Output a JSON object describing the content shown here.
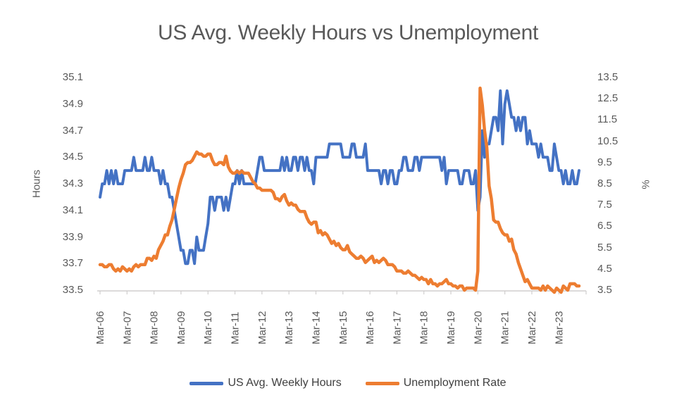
{
  "title": "US Avg. Weekly Hours vs Unemployment",
  "axes": {
    "left": {
      "title": "Hours",
      "ticks": [
        "35.1",
        "34.9",
        "34.7",
        "34.5",
        "34.3",
        "34.1",
        "33.9",
        "33.7",
        "33.5"
      ]
    },
    "right": {
      "title": "%",
      "ticks": [
        "13.5",
        "12.5",
        "11.5",
        "10.5",
        "9.5",
        "8.5",
        "7.5",
        "6.5",
        "5.5",
        "4.5",
        "3.5"
      ]
    },
    "x": {
      "ticks": [
        "Mar-06",
        "Mar-07",
        "Mar-08",
        "Mar-09",
        "Mar-10",
        "Mar-11",
        "Mar-12",
        "Mar-13",
        "Mar-14",
        "Mar-15",
        "Mar-16",
        "Mar-17",
        "Mar-18",
        "Mar-19",
        "Mar-20",
        "Mar-21",
        "Mar-22",
        "Mar-23"
      ]
    }
  },
  "legend": {
    "items": [
      {
        "label": "US Avg. Weekly Hours",
        "color": "#4472C4"
      },
      {
        "label": "Unemployment Rate",
        "color": "#ED7D31"
      }
    ]
  },
  "chart_data": {
    "type": "line",
    "title": "US Avg. Weekly Hours vs Unemployment",
    "x": {
      "start": "Mar-2006",
      "end": "Dec-2023",
      "frequency": "monthly",
      "points": 214,
      "tick_labels": [
        "Mar-06",
        "Mar-07",
        "Mar-08",
        "Mar-09",
        "Mar-10",
        "Mar-11",
        "Mar-12",
        "Mar-13",
        "Mar-14",
        "Mar-15",
        "Mar-16",
        "Mar-17",
        "Mar-18",
        "Mar-19",
        "Mar-20",
        "Mar-21",
        "Mar-22",
        "Mar-23"
      ]
    },
    "y_left": {
      "label": "Hours",
      "min": 33.5,
      "max": 35.1,
      "tick_step": 0.2
    },
    "y_right": {
      "label": "%",
      "min": 3.5,
      "max": 13.5,
      "tick_step": 1.0
    },
    "gridlines": false,
    "legend_position": "bottom",
    "series": [
      {
        "name": "US Avg. Weekly Hours",
        "axis": "left",
        "color": "#4472C4",
        "values": [
          34.2,
          34.3,
          34.3,
          34.4,
          34.3,
          34.4,
          34.3,
          34.4,
          34.3,
          34.3,
          34.3,
          34.4,
          34.4,
          34.4,
          34.4,
          34.5,
          34.4,
          34.4,
          34.4,
          34.4,
          34.5,
          34.4,
          34.4,
          34.5,
          34.4,
          34.4,
          34.4,
          34.3,
          34.4,
          34.3,
          34.3,
          34.2,
          34.2,
          34.1,
          34.0,
          33.9,
          33.8,
          33.8,
          33.7,
          33.7,
          33.8,
          33.8,
          33.7,
          33.9,
          33.8,
          33.8,
          33.8,
          33.9,
          34.0,
          34.2,
          34.2,
          34.1,
          34.2,
          34.2,
          34.2,
          34.1,
          34.2,
          34.1,
          34.2,
          34.3,
          34.3,
          34.4,
          34.3,
          34.4,
          34.3,
          34.3,
          34.3,
          34.3,
          34.3,
          34.3,
          34.4,
          34.5,
          34.5,
          34.4,
          34.4,
          34.4,
          34.4,
          34.4,
          34.4,
          34.4,
          34.4,
          34.5,
          34.4,
          34.5,
          34.4,
          34.4,
          34.5,
          34.5,
          34.4,
          34.5,
          34.5,
          34.4,
          34.5,
          34.4,
          34.4,
          34.3,
          34.5,
          34.5,
          34.5,
          34.5,
          34.5,
          34.5,
          34.6,
          34.6,
          34.6,
          34.6,
          34.6,
          34.6,
          34.5,
          34.5,
          34.5,
          34.5,
          34.6,
          34.6,
          34.5,
          34.5,
          34.5,
          34.5,
          34.6,
          34.4,
          34.4,
          34.4,
          34.4,
          34.4,
          34.4,
          34.3,
          34.4,
          34.4,
          34.3,
          34.4,
          34.4,
          34.3,
          34.3,
          34.4,
          34.4,
          34.5,
          34.5,
          34.4,
          34.4,
          34.4,
          34.5,
          34.5,
          34.4,
          34.5,
          34.5,
          34.5,
          34.5,
          34.5,
          34.5,
          34.5,
          34.5,
          34.5,
          34.4,
          34.5,
          34.3,
          34.4,
          34.4,
          34.4,
          34.4,
          34.4,
          34.3,
          34.3,
          34.4,
          34.4,
          34.4,
          34.3,
          34.3,
          34.4,
          34.1,
          34.2,
          34.7,
          34.5,
          34.6,
          34.6,
          34.7,
          34.8,
          34.8,
          34.7,
          35.0,
          34.6,
          34.9,
          35.0,
          34.9,
          34.8,
          34.8,
          34.7,
          34.8,
          34.7,
          34.8,
          34.8,
          34.6,
          34.7,
          34.6,
          34.6,
          34.6,
          34.5,
          34.6,
          34.5,
          34.5,
          34.5,
          34.4,
          34.4,
          34.6,
          34.5,
          34.4,
          34.4,
          34.3,
          34.4,
          34.3,
          34.3,
          34.4,
          34.3,
          34.3,
          34.4
        ]
      },
      {
        "name": "Unemployment Rate",
        "axis": "right",
        "color": "#ED7D31",
        "values": [
          4.7,
          4.7,
          4.6,
          4.6,
          4.7,
          4.7,
          4.5,
          4.4,
          4.5,
          4.4,
          4.6,
          4.5,
          4.4,
          4.5,
          4.4,
          4.6,
          4.7,
          4.6,
          4.7,
          4.7,
          4.7,
          5.0,
          5.0,
          4.9,
          5.1,
          5.0,
          5.4,
          5.6,
          5.8,
          6.1,
          6.1,
          6.5,
          6.8,
          7.3,
          7.8,
          8.3,
          8.7,
          9.0,
          9.4,
          9.5,
          9.5,
          9.6,
          9.8,
          10.0,
          9.9,
          9.9,
          9.8,
          9.8,
          9.9,
          9.9,
          9.6,
          9.4,
          9.4,
          9.5,
          9.5,
          9.4,
          9.8,
          9.3,
          9.1,
          9.0,
          9.0,
          9.1,
          9.0,
          9.1,
          9.0,
          9.0,
          9.0,
          8.8,
          8.6,
          8.5,
          8.3,
          8.3,
          8.2,
          8.2,
          8.2,
          8.2,
          8.2,
          8.1,
          7.8,
          7.8,
          7.7,
          7.9,
          8.0,
          7.7,
          7.5,
          7.6,
          7.5,
          7.5,
          7.3,
          7.2,
          7.2,
          7.2,
          6.9,
          6.7,
          6.6,
          6.7,
          6.7,
          6.2,
          6.3,
          6.1,
          6.2,
          6.1,
          5.9,
          5.7,
          5.8,
          5.6,
          5.7,
          5.5,
          5.4,
          5.4,
          5.6,
          5.3,
          5.2,
          5.1,
          5.0,
          5.0,
          5.1,
          5.0,
          4.8,
          4.9,
          5.0,
          5.1,
          4.8,
          4.9,
          4.8,
          4.9,
          5.0,
          4.9,
          4.7,
          4.7,
          4.7,
          4.6,
          4.4,
          4.4,
          4.4,
          4.3,
          4.3,
          4.4,
          4.3,
          4.2,
          4.2,
          4.1,
          4.0,
          4.1,
          4.0,
          4.0,
          3.8,
          4.0,
          3.8,
          3.8,
          3.7,
          3.8,
          3.8,
          3.9,
          4.0,
          3.8,
          3.8,
          3.7,
          3.7,
          3.6,
          3.7,
          3.7,
          3.5,
          3.6,
          3.6,
          3.6,
          3.6,
          3.5,
          4.4,
          13.0,
          12.2,
          11.0,
          10.2,
          8.4,
          7.8,
          6.8,
          6.7,
          6.7,
          6.4,
          6.2,
          6.1,
          6.1,
          5.8,
          5.9,
          5.4,
          5.2,
          4.8,
          4.5,
          4.2,
          3.9,
          4.0,
          3.8,
          3.6,
          3.6,
          3.6,
          3.6,
          3.5,
          3.7,
          3.5,
          3.7,
          3.6,
          3.5,
          3.4,
          3.6,
          3.5,
          3.4,
          3.7,
          3.6,
          3.5,
          3.8,
          3.8,
          3.8,
          3.7,
          3.7
        ]
      }
    ]
  }
}
